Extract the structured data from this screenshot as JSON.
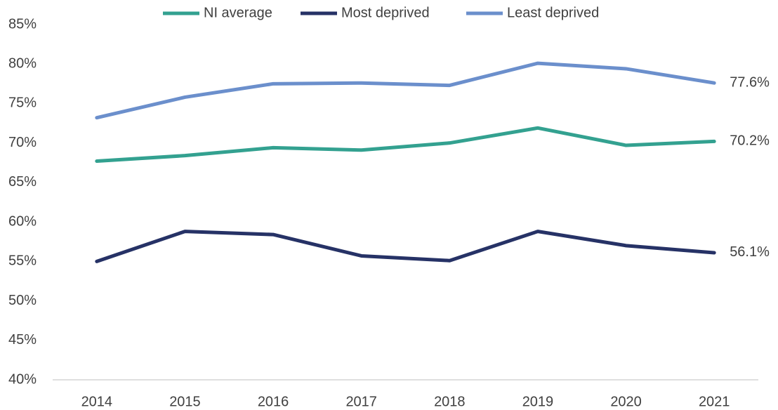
{
  "chart_data": {
    "type": "line",
    "categories": [
      "2014",
      "2015",
      "2016",
      "2017",
      "2018",
      "2019",
      "2020",
      "2021"
    ],
    "series": [
      {
        "name": "NI average",
        "color": "#33a190",
        "values": [
          67.7,
          68.4,
          69.4,
          69.1,
          70.0,
          71.9,
          69.7,
          70.2
        ],
        "value_labels": [
          null,
          null,
          null,
          null,
          null,
          null,
          null,
          "70.2%"
        ]
      },
      {
        "name": "Most deprived",
        "color": "#263266",
        "values": [
          55.0,
          58.8,
          58.4,
          55.7,
          55.1,
          58.8,
          57.0,
          56.1
        ],
        "value_labels": [
          null,
          null,
          null,
          null,
          null,
          null,
          null,
          "56.1%"
        ]
      },
      {
        "name": "Least deprived",
        "color": "#6b8fcc",
        "values": [
          73.2,
          75.8,
          77.5,
          77.6,
          77.3,
          80.1,
          79.4,
          77.6
        ],
        "value_labels": [
          null,
          null,
          null,
          null,
          null,
          null,
          null,
          "77.6%"
        ]
      }
    ],
    "ylim": [
      40,
      85
    ],
    "yticks": [
      {
        "value": 40,
        "label": "40%"
      },
      {
        "value": 45,
        "label": "45%"
      },
      {
        "value": 50,
        "label": "50%"
      },
      {
        "value": 55,
        "label": "55%"
      },
      {
        "value": 60,
        "label": "60%"
      },
      {
        "value": 65,
        "label": "65%"
      },
      {
        "value": 70,
        "label": "70%"
      },
      {
        "value": 75,
        "label": "75%"
      },
      {
        "value": 80,
        "label": "80%"
      },
      {
        "value": 85,
        "label": "85%"
      }
    ],
    "grid": false,
    "legend": "top"
  }
}
